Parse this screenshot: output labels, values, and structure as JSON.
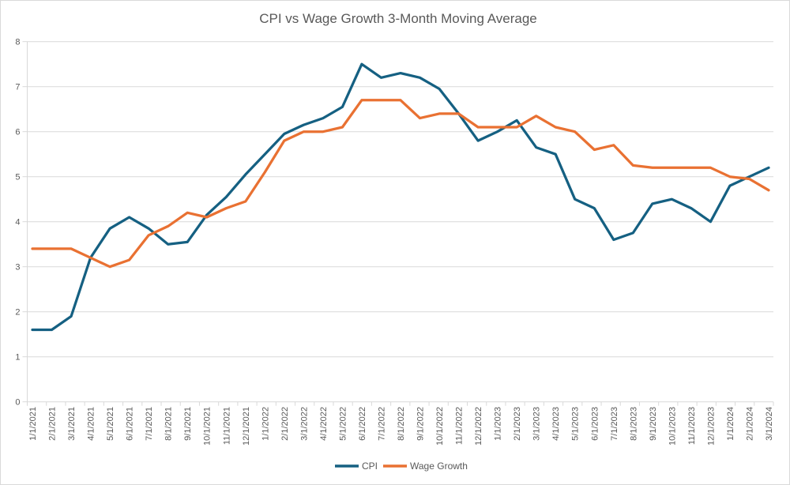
{
  "chart_data": {
    "type": "line",
    "title": "CPI vs Wage Growth 3-Month Moving Average",
    "x": [
      "1/1/2021",
      "2/1/2021",
      "3/1/2021",
      "4/1/2021",
      "5/1/2021",
      "6/1/2021",
      "7/1/2021",
      "8/1/2021",
      "9/1/2021",
      "10/1/2021",
      "11/1/2021",
      "12/1/2021",
      "1/1/2022",
      "2/1/2022",
      "3/1/2022",
      "4/1/2022",
      "5/1/2022",
      "6/1/2022",
      "7/1/2022",
      "8/1/2022",
      "9/1/2022",
      "10/1/2022",
      "11/1/2022",
      "12/1/2022",
      "1/1/2023",
      "2/1/2023",
      "3/1/2023",
      "4/1/2023",
      "5/1/2023",
      "6/1/2023",
      "7/1/2023",
      "8/1/2023",
      "9/1/2023",
      "10/1/2023",
      "11/1/2023",
      "12/1/2023",
      "1/1/2024",
      "2/1/2024",
      "3/1/2024"
    ],
    "series": [
      {
        "name": "CPI",
        "color": "#156082",
        "values": [
          1.6,
          1.6,
          1.9,
          3.2,
          3.85,
          4.1,
          3.85,
          3.5,
          3.55,
          4.15,
          4.55,
          5.05,
          5.5,
          5.95,
          6.15,
          6.3,
          6.55,
          7.5,
          7.2,
          7.3,
          7.2,
          6.95,
          6.4,
          5.8,
          6.0,
          6.25,
          5.65,
          5.5,
          4.5,
          4.3,
          3.6,
          3.75,
          4.4,
          4.5,
          4.3,
          4.0,
          4.8,
          5.0,
          5.2
        ]
      },
      {
        "name": "Wage Growth",
        "color": "#E97132",
        "values": [
          3.4,
          3.4,
          3.4,
          3.2,
          3.0,
          3.15,
          3.7,
          3.9,
          4.2,
          4.1,
          4.3,
          4.45,
          5.1,
          5.8,
          6.0,
          6.0,
          6.1,
          6.7,
          6.7,
          6.7,
          6.3,
          6.4,
          6.4,
          6.1,
          6.1,
          6.1,
          6.35,
          6.1,
          6.0,
          5.6,
          5.7,
          5.25,
          5.2,
          5.2,
          5.2,
          5.2,
          5.0,
          4.95,
          4.7
        ]
      }
    ],
    "ylim": [
      0,
      8
    ],
    "ytick_interval": 1,
    "yticks": [
      "0",
      "1",
      "2",
      "3",
      "4",
      "5",
      "6",
      "7",
      "8"
    ],
    "grid": "horizontal-only",
    "legend_position": "bottom-center",
    "xlabel": "",
    "ylabel": "",
    "styles": {
      "axis_text_color": "#595959",
      "title_color": "#595959",
      "gridline_color": "#d9d9d9",
      "axis_line_color": "#d9d9d9",
      "background": "#ffffff"
    }
  }
}
